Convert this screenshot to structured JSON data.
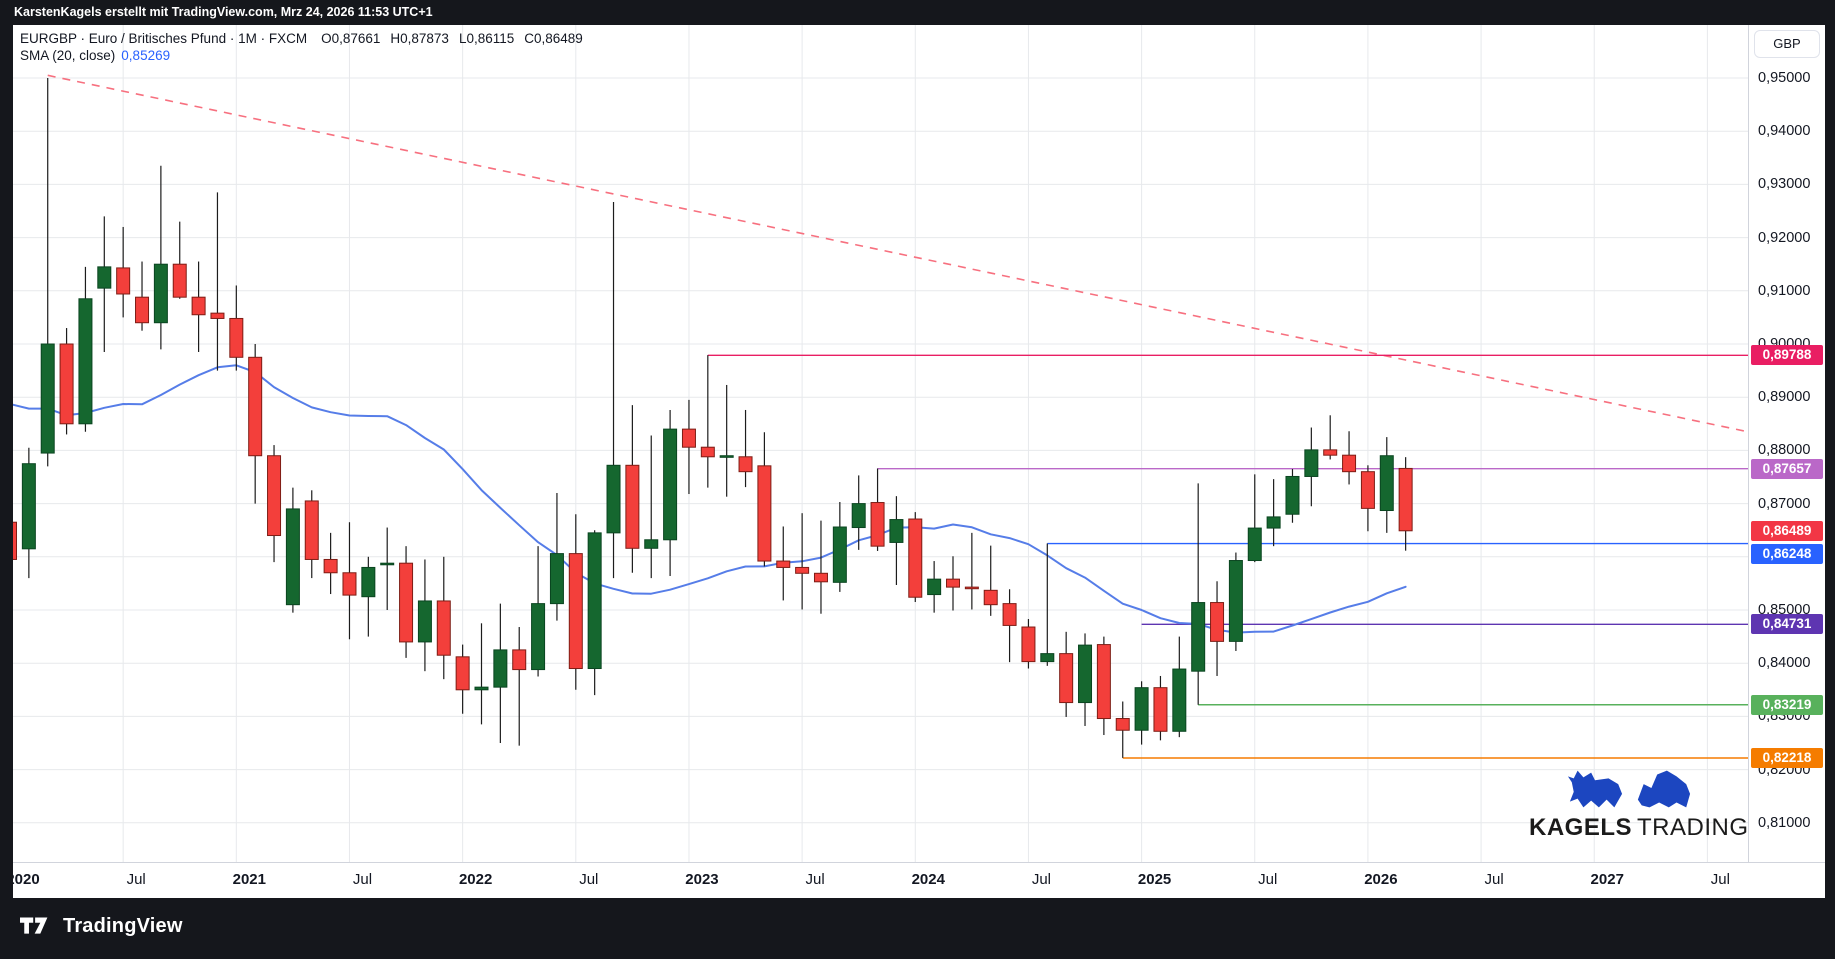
{
  "top_bar": {
    "attribution": "KarstenKagels erstellt mit TradingView.com, Mrz 24, 2026 11:53 UTC+1"
  },
  "header": {
    "symbol_line": "EURGBP · Euro / Britisches Pfund · 1M · FXCM",
    "ohlc": {
      "o": "O0,87661",
      "h": "H0,87873",
      "l": "L0,86115",
      "c": "C0,86489"
    },
    "indicator": {
      "label": "SMA (20, close)",
      "value": "0,85269"
    }
  },
  "price_axis": {
    "currency": "GBP"
  },
  "watermark": {
    "line1": "KAGELS",
    "line2": "TRADING"
  },
  "footer": {
    "brand": "TradingView"
  },
  "chart_data": {
    "type": "candlestick",
    "symbol": "EURGBP",
    "timeframe": "1M",
    "source": "FXCM",
    "ylim": [
      0.808,
      0.955
    ],
    "grid": true,
    "colors": {
      "up": "#15672f",
      "up_border": "#0a4520",
      "down": "#f33f3b",
      "down_border": "#7e1d15",
      "wick": "#1c1c1c",
      "sma": "#567de8",
      "grid": "#e7e9ec"
    },
    "months": [
      [
        "2020-01",
        0.8665,
        0.8705,
        0.8565,
        0.8595
      ],
      [
        "2020-02",
        0.8615,
        0.8805,
        0.856,
        0.8775
      ],
      [
        "2020-03",
        0.8795,
        0.95,
        0.877,
        0.9
      ],
      [
        "2020-04",
        0.9,
        0.903,
        0.883,
        0.885
      ],
      [
        "2020-05",
        0.885,
        0.9145,
        0.8835,
        0.9085
      ],
      [
        "2020-06",
        0.9105,
        0.924,
        0.8985,
        0.9145
      ],
      [
        "2020-07",
        0.9143,
        0.922,
        0.905,
        0.9094
      ],
      [
        "2020-08",
        0.9088,
        0.9155,
        0.9025,
        0.904
      ],
      [
        "2020-09",
        0.904,
        0.9335,
        0.899,
        0.915
      ],
      [
        "2020-10",
        0.915,
        0.923,
        0.9085,
        0.9088
      ],
      [
        "2020-11",
        0.9088,
        0.9155,
        0.8985,
        0.9055
      ],
      [
        "2020-12",
        0.9058,
        0.9285,
        0.895,
        0.9048
      ],
      [
        "2021-01",
        0.9048,
        0.911,
        0.895,
        0.8975
      ],
      [
        "2021-02",
        0.8975,
        0.9,
        0.87,
        0.879
      ],
      [
        "2021-03",
        0.879,
        0.881,
        0.859,
        0.864
      ],
      [
        "2021-04",
        0.851,
        0.873,
        0.8495,
        0.869
      ],
      [
        "2021-05",
        0.8705,
        0.8725,
        0.856,
        0.8595
      ],
      [
        "2021-06",
        0.8595,
        0.8645,
        0.853,
        0.857
      ],
      [
        "2021-07",
        0.857,
        0.8665,
        0.8445,
        0.8528
      ],
      [
        "2021-08",
        0.8525,
        0.86,
        0.845,
        0.858
      ],
      [
        "2021-09",
        0.8585,
        0.8655,
        0.85,
        0.8588
      ],
      [
        "2021-10",
        0.8588,
        0.862,
        0.841,
        0.844
      ],
      [
        "2021-11",
        0.844,
        0.8595,
        0.8385,
        0.8517
      ],
      [
        "2021-12",
        0.8517,
        0.86,
        0.837,
        0.8415
      ],
      [
        "2022-01",
        0.8412,
        0.8435,
        0.8305,
        0.835
      ],
      [
        "2022-02",
        0.835,
        0.8475,
        0.8285,
        0.8355
      ],
      [
        "2022-03",
        0.8355,
        0.8512,
        0.825,
        0.8425
      ],
      [
        "2022-04",
        0.8425,
        0.8468,
        0.8245,
        0.8388
      ],
      [
        "2022-05",
        0.8388,
        0.862,
        0.8375,
        0.8512
      ],
      [
        "2022-06",
        0.8512,
        0.872,
        0.848,
        0.8606
      ],
      [
        "2022-07",
        0.8606,
        0.868,
        0.835,
        0.839
      ],
      [
        "2022-08",
        0.839,
        0.865,
        0.834,
        0.8645
      ],
      [
        "2022-09",
        0.8645,
        0.9267,
        0.856,
        0.8772
      ],
      [
        "2022-10",
        0.8772,
        0.8885,
        0.857,
        0.8616
      ],
      [
        "2022-11",
        0.8616,
        0.8828,
        0.856,
        0.8632
      ],
      [
        "2022-12",
        0.8632,
        0.8876,
        0.8564,
        0.884
      ],
      [
        "2023-01",
        0.884,
        0.8895,
        0.8718,
        0.8806
      ],
      [
        "2023-02",
        0.8806,
        0.8979,
        0.873,
        0.8788
      ],
      [
        "2023-03",
        0.8788,
        0.8923,
        0.8713,
        0.879
      ],
      [
        "2023-04",
        0.8788,
        0.8876,
        0.8731,
        0.876
      ],
      [
        "2023-05",
        0.8771,
        0.8834,
        0.8582,
        0.8592
      ],
      [
        "2023-06",
        0.8592,
        0.8657,
        0.8518,
        0.858
      ],
      [
        "2023-07",
        0.858,
        0.8682,
        0.8501,
        0.8569
      ],
      [
        "2023-08",
        0.8569,
        0.8668,
        0.8493,
        0.8553
      ],
      [
        "2023-09",
        0.8552,
        0.8703,
        0.8534,
        0.8656
      ],
      [
        "2023-10",
        0.8655,
        0.8753,
        0.8613,
        0.87
      ],
      [
        "2023-11",
        0.8702,
        0.8766,
        0.8611,
        0.862
      ],
      [
        "2023-12",
        0.8627,
        0.8714,
        0.8547,
        0.867
      ],
      [
        "2024-01",
        0.8671,
        0.8684,
        0.8515,
        0.8524
      ],
      [
        "2024-02",
        0.8529,
        0.8592,
        0.8495,
        0.8558
      ],
      [
        "2024-03",
        0.8558,
        0.8601,
        0.8499,
        0.8543
      ],
      [
        "2024-04",
        0.8543,
        0.8645,
        0.8501,
        0.854
      ],
      [
        "2024-05",
        0.8537,
        0.8621,
        0.8489,
        0.851
      ],
      [
        "2024-06",
        0.8512,
        0.8539,
        0.8402,
        0.8471
      ],
      [
        "2024-07",
        0.8468,
        0.8483,
        0.839,
        0.8403
      ],
      [
        "2024-08",
        0.8403,
        0.8625,
        0.8395,
        0.8418
      ],
      [
        "2024-09",
        0.8418,
        0.8459,
        0.8299,
        0.8326
      ],
      [
        "2024-10",
        0.8326,
        0.8456,
        0.8282,
        0.8434
      ],
      [
        "2024-11",
        0.8435,
        0.845,
        0.8265,
        0.8296
      ],
      [
        "2024-12",
        0.8296,
        0.8328,
        0.8222,
        0.8274
      ],
      [
        "2025-01",
        0.8274,
        0.8366,
        0.8247,
        0.8354
      ],
      [
        "2025-02",
        0.8354,
        0.8376,
        0.8255,
        0.8272
      ],
      [
        "2025-03",
        0.8272,
        0.845,
        0.8261,
        0.8389
      ],
      [
        "2025-04",
        0.8385,
        0.8738,
        0.8322,
        0.8514
      ],
      [
        "2025-05",
        0.8514,
        0.8554,
        0.8376,
        0.8441
      ],
      [
        "2025-06",
        0.8441,
        0.8608,
        0.8423,
        0.8593
      ],
      [
        "2025-07",
        0.8593,
        0.8755,
        0.859,
        0.8654
      ],
      [
        "2025-08",
        0.8654,
        0.8746,
        0.862,
        0.8675
      ],
      [
        "2025-09",
        0.868,
        0.8765,
        0.8664,
        0.8751
      ],
      [
        "2025-10",
        0.8751,
        0.8843,
        0.8695,
        0.8801
      ],
      [
        "2025-11",
        0.8801,
        0.8866,
        0.8783,
        0.8791
      ],
      [
        "2025-12",
        0.8791,
        0.8836,
        0.8736,
        0.876
      ],
      [
        "2026-01",
        0.876,
        0.8772,
        0.8648,
        0.8691
      ],
      [
        "2026-02",
        0.8687,
        0.8825,
        0.8645,
        0.879
      ],
      [
        "2026-03",
        0.87661,
        0.87873,
        0.86115,
        0.86489
      ]
    ],
    "sma": {
      "period": 20,
      "seed_closes": [
        0.895,
        0.9,
        0.91,
        0.9,
        0.895,
        0.895,
        0.905,
        0.88,
        0.87,
        0.87,
        0.875,
        0.89,
        0.905,
        0.92,
        0.91,
        0.895,
        0.875,
        0.865,
        0.86
      ],
      "current_value": 0.85269
    },
    "levels": [
      {
        "price": 0.89788,
        "label": "0,89788",
        "color": "#e91e63",
        "start_index": 37,
        "label_dy": 0
      },
      {
        "price": 0.87657,
        "label": "0,87657",
        "color": "#ba68c8",
        "start_index": 46,
        "label_dy": 0
      },
      {
        "price": 0.86248,
        "label": "0,86248",
        "color": "#2962ff",
        "start_index": 55,
        "label_dy": 10
      },
      {
        "price": 0.84731,
        "label": "0,84731",
        "color": "#5e35b1",
        "start_index": 60,
        "label_dy": 0
      },
      {
        "price": 0.83219,
        "label": "0,83219",
        "color": "#58b15c",
        "start_index": 63,
        "label_dy": 0
      },
      {
        "price": 0.82218,
        "label": "0,82218",
        "color": "#f57c00",
        "start_index": 59,
        "label_dy": 0
      }
    ],
    "last_price": {
      "price": 0.86489,
      "label": "0,86489",
      "color": "#f23645"
    },
    "trendline": {
      "from_index": 2,
      "from_price": 0.9505,
      "right_edge_price": 0.8835,
      "color": "#f7707f",
      "dash": "8 7",
      "style": "dashed"
    },
    "y_ticks": [
      {
        "price": 0.95,
        "label": "0,95000"
      },
      {
        "price": 0.94,
        "label": "0,94000"
      },
      {
        "price": 0.93,
        "label": "0,93000"
      },
      {
        "price": 0.92,
        "label": "0,92000"
      },
      {
        "price": 0.91,
        "label": "0,91000"
      },
      {
        "price": 0.9,
        "label": "0,90000"
      },
      {
        "price": 0.89,
        "label": "0,89000"
      },
      {
        "price": 0.88,
        "label": "0,88000"
      },
      {
        "price": 0.87,
        "label": "0,87000"
      },
      {
        "price": 0.85,
        "label": "0,85000"
      },
      {
        "price": 0.84,
        "label": "0,84000"
      },
      {
        "price": 0.83,
        "label": "0,83000"
      },
      {
        "price": 0.82,
        "label": "0,82000"
      },
      {
        "price": 0.81,
        "label": "0,81000"
      }
    ],
    "time_labels": [
      {
        "index": 0,
        "text": "2020",
        "bold": true
      },
      {
        "index": 6,
        "text": "Jul",
        "bold": false
      },
      {
        "index": 12,
        "text": "2021",
        "bold": true
      },
      {
        "index": 18,
        "text": "Jul",
        "bold": false
      },
      {
        "index": 24,
        "text": "2022",
        "bold": true
      },
      {
        "index": 30,
        "text": "Jul",
        "bold": false
      },
      {
        "index": 36,
        "text": "2023",
        "bold": true
      },
      {
        "index": 42,
        "text": "Jul",
        "bold": false
      },
      {
        "index": 48,
        "text": "2024",
        "bold": true
      },
      {
        "index": 54,
        "text": "Jul",
        "bold": false
      },
      {
        "index": 60,
        "text": "2025",
        "bold": true
      },
      {
        "index": 66,
        "text": "Jul",
        "bold": false
      },
      {
        "index": 72,
        "text": "2026",
        "bold": true
      },
      {
        "index": 78,
        "text": "Jul",
        "bold": false
      },
      {
        "index": 84,
        "text": "2027",
        "bold": true
      },
      {
        "index": 90,
        "text": "Jul",
        "bold": false
      }
    ]
  }
}
